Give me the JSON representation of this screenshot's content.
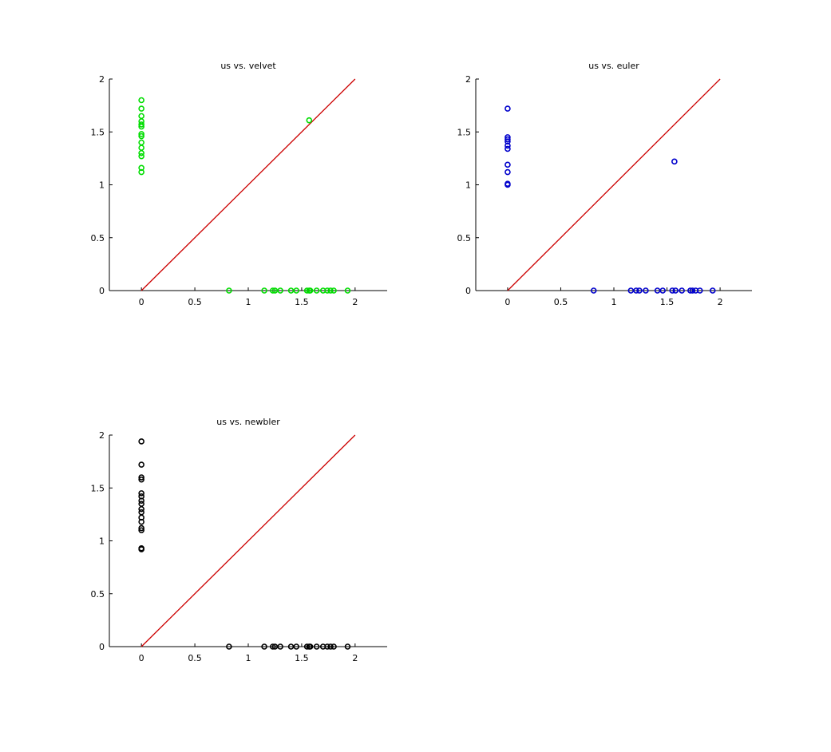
{
  "chart_data": [
    {
      "type": "scatter",
      "title": "us vs. velvet",
      "xlabel": "",
      "ylabel": "",
      "xlim": [
        -0.3,
        2.3
      ],
      "ylim": [
        0,
        2
      ],
      "xticks": [
        "0",
        "0.5",
        "1",
        "1.5",
        "2"
      ],
      "yticks": [
        "0",
        "0.5",
        "1",
        "1.5",
        "2"
      ],
      "grid": false,
      "marker_color": "#00dd00",
      "line_color": "#cc0000",
      "diagonal": [
        [
          0,
          0
        ],
        [
          2,
          2
        ]
      ],
      "points": [
        [
          0,
          1.8
        ],
        [
          0,
          1.72
        ],
        [
          0,
          1.65
        ],
        [
          0,
          1.6
        ],
        [
          0,
          1.57
        ],
        [
          0,
          1.55
        ],
        [
          0,
          1.48
        ],
        [
          0,
          1.46
        ],
        [
          0,
          1.4
        ],
        [
          0,
          1.35
        ],
        [
          0,
          1.3
        ],
        [
          0,
          1.27
        ],
        [
          0,
          1.16
        ],
        [
          0,
          1.12
        ],
        [
          1.57,
          1.61
        ],
        [
          0.82,
          0
        ],
        [
          1.15,
          0
        ],
        [
          1.23,
          0
        ],
        [
          1.25,
          0
        ],
        [
          1.3,
          0
        ],
        [
          1.4,
          0
        ],
        [
          1.45,
          0
        ],
        [
          1.55,
          0
        ],
        [
          1.57,
          0
        ],
        [
          1.58,
          0
        ],
        [
          1.64,
          0
        ],
        [
          1.7,
          0
        ],
        [
          1.74,
          0
        ],
        [
          1.77,
          0
        ],
        [
          1.8,
          0
        ],
        [
          1.93,
          0
        ]
      ]
    },
    {
      "type": "scatter",
      "title": "us vs. euler",
      "xlabel": "",
      "ylabel": "",
      "xlim": [
        -0.3,
        2.3
      ],
      "ylim": [
        0,
        2
      ],
      "xticks": [
        "0",
        "0.5",
        "1",
        "1.5",
        "2"
      ],
      "yticks": [
        "0",
        "0.5",
        "1",
        "1.5",
        "2"
      ],
      "grid": false,
      "marker_color": "#0000cc",
      "line_color": "#cc0000",
      "diagonal": [
        [
          0,
          0
        ],
        [
          2,
          2
        ]
      ],
      "points": [
        [
          0,
          1.72
        ],
        [
          0,
          1.45
        ],
        [
          0,
          1.43
        ],
        [
          0,
          1.41
        ],
        [
          0,
          1.37
        ],
        [
          0,
          1.34
        ],
        [
          0,
          1.19
        ],
        [
          0,
          1.12
        ],
        [
          0,
          1.01
        ],
        [
          0,
          1.0
        ],
        [
          1.57,
          1.22
        ],
        [
          0.81,
          0
        ],
        [
          1.16,
          0
        ],
        [
          1.21,
          0
        ],
        [
          1.24,
          0
        ],
        [
          1.3,
          0
        ],
        [
          1.41,
          0
        ],
        [
          1.46,
          0
        ],
        [
          1.55,
          0
        ],
        [
          1.58,
          0
        ],
        [
          1.64,
          0
        ],
        [
          1.72,
          0
        ],
        [
          1.74,
          0
        ],
        [
          1.77,
          0
        ],
        [
          1.81,
          0
        ],
        [
          1.93,
          0
        ]
      ]
    },
    {
      "type": "scatter",
      "title": "us vs. newbler",
      "xlabel": "",
      "ylabel": "",
      "xlim": [
        -0.3,
        2.3
      ],
      "ylim": [
        0,
        2
      ],
      "xticks": [
        "0",
        "0.5",
        "1",
        "1.5",
        "2"
      ],
      "yticks": [
        "0",
        "0.5",
        "1",
        "1.5",
        "2"
      ],
      "grid": false,
      "marker_color": "#000000",
      "line_color": "#cc0000",
      "diagonal": [
        [
          0,
          0
        ],
        [
          2,
          2
        ]
      ],
      "points": [
        [
          0,
          1.94
        ],
        [
          0,
          1.72
        ],
        [
          0,
          1.6
        ],
        [
          0,
          1.58
        ],
        [
          0,
          1.45
        ],
        [
          0,
          1.42
        ],
        [
          0,
          1.38
        ],
        [
          0,
          1.35
        ],
        [
          0,
          1.3
        ],
        [
          0,
          1.27
        ],
        [
          0,
          1.22
        ],
        [
          0,
          1.18
        ],
        [
          0,
          1.12
        ],
        [
          0,
          1.1
        ],
        [
          0,
          0.93
        ],
        [
          0,
          0.92
        ],
        [
          0.82,
          0
        ],
        [
          1.15,
          0
        ],
        [
          1.23,
          0
        ],
        [
          1.25,
          0
        ],
        [
          1.3,
          0
        ],
        [
          1.4,
          0
        ],
        [
          1.45,
          0
        ],
        [
          1.55,
          0
        ],
        [
          1.57,
          0
        ],
        [
          1.58,
          0
        ],
        [
          1.64,
          0
        ],
        [
          1.7,
          0
        ],
        [
          1.74,
          0
        ],
        [
          1.77,
          0
        ],
        [
          1.8,
          0
        ],
        [
          1.93,
          0
        ]
      ]
    }
  ]
}
